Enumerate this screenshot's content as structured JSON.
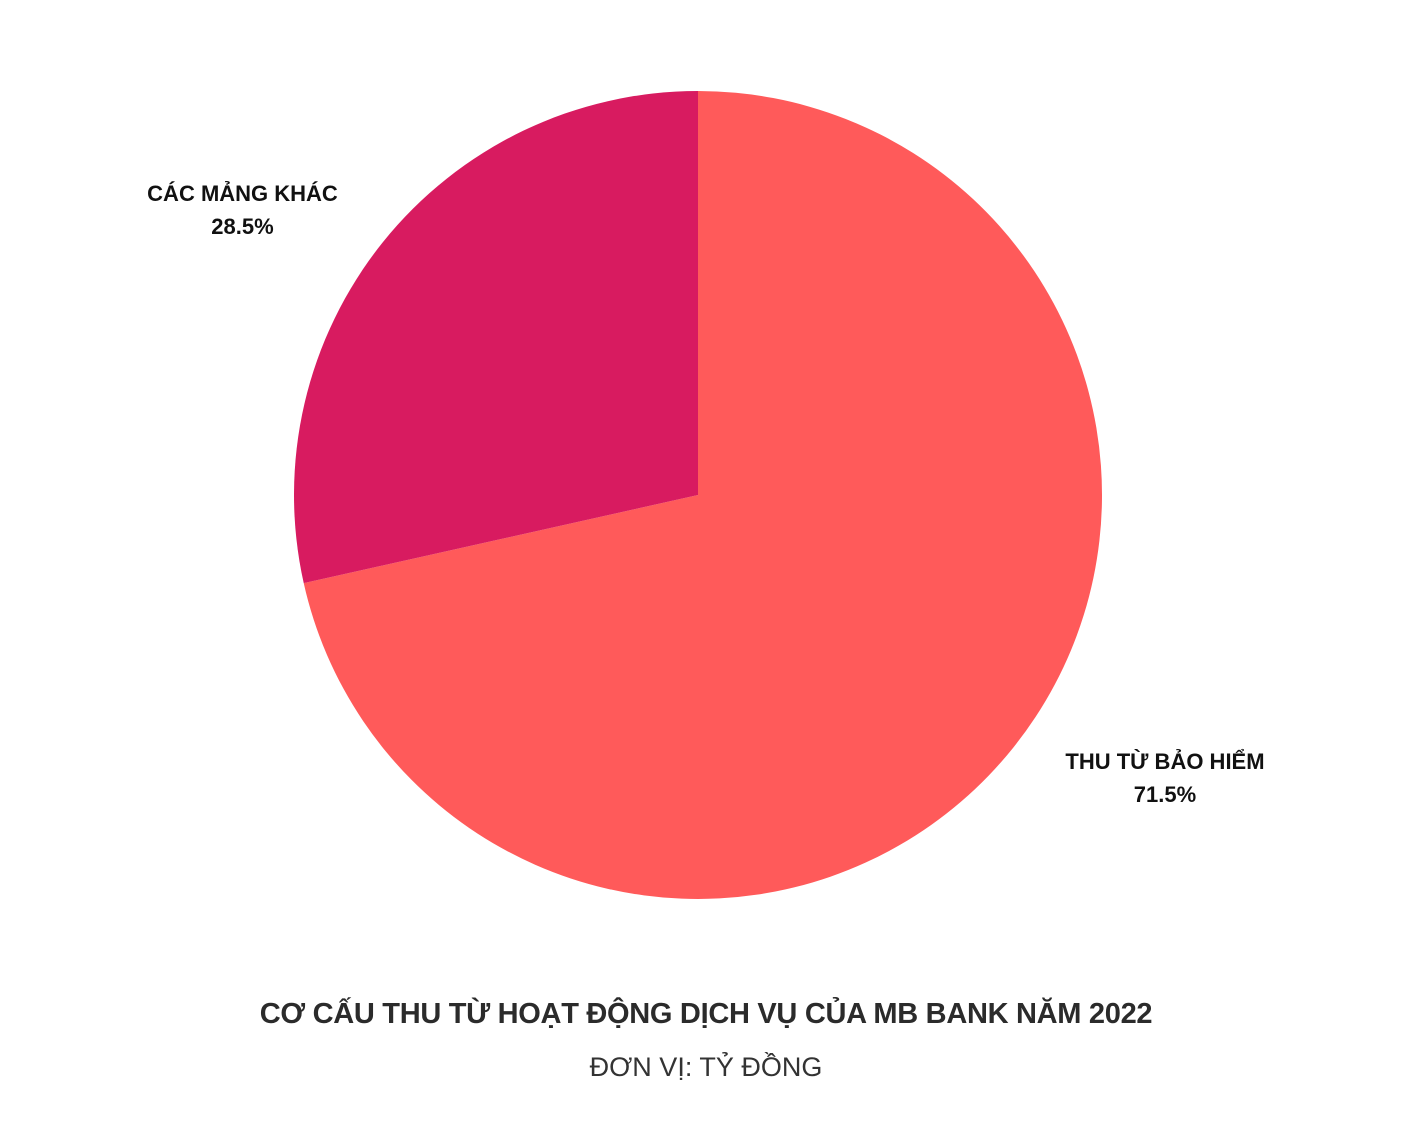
{
  "chart_data": {
    "type": "pie",
    "title": "CƠ CẤU THU TỪ HOẠT ĐỘNG DỊCH VỤ CỦA MB BANK NĂM 2022",
    "subtitle": "ĐƠN VỊ: TỶ ĐỒNG",
    "start": "12 o'clock, clockwise",
    "slices": [
      {
        "label": "THU TỪ BẢO HIỂM",
        "value": 71.5,
        "value_label": "71.5%",
        "color": "#FF5A5A"
      },
      {
        "label": "CÁC MẢNG KHÁC",
        "value": 28.5,
        "value_label": "28.5%",
        "color": "#D81B60"
      }
    ],
    "legend": "none"
  }
}
